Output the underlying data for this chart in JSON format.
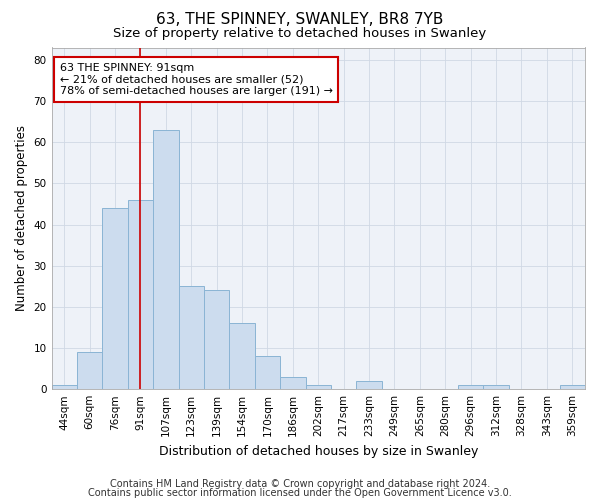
{
  "title1": "63, THE SPINNEY, SWANLEY, BR8 7YB",
  "title2": "Size of property relative to detached houses in Swanley",
  "xlabel": "Distribution of detached houses by size in Swanley",
  "ylabel": "Number of detached properties",
  "categories": [
    "44sqm",
    "60sqm",
    "76sqm",
    "91sqm",
    "107sqm",
    "123sqm",
    "139sqm",
    "154sqm",
    "170sqm",
    "186sqm",
    "202sqm",
    "217sqm",
    "233sqm",
    "249sqm",
    "265sqm",
    "280sqm",
    "296sqm",
    "312sqm",
    "328sqm",
    "343sqm",
    "359sqm"
  ],
  "values": [
    1,
    9,
    44,
    46,
    63,
    25,
    24,
    16,
    8,
    3,
    1,
    0,
    2,
    0,
    0,
    0,
    1,
    1,
    0,
    0,
    1
  ],
  "bar_color": "#ccdcee",
  "bar_edge_color": "#8ab4d4",
  "redline_index": 3,
  "redline_color": "#cc0000",
  "annotation_line1": "63 THE SPINNEY: 91sqm",
  "annotation_line2": "← 21% of detached houses are smaller (52)",
  "annotation_line3": "78% of semi-detached houses are larger (191) →",
  "annotation_box_color": "#ffffff",
  "annotation_box_edge": "#cc0000",
  "ylim": [
    0,
    83
  ],
  "yticks": [
    0,
    10,
    20,
    30,
    40,
    50,
    60,
    70,
    80
  ],
  "footer1": "Contains HM Land Registry data © Crown copyright and database right 2024.",
  "footer2": "Contains public sector information licensed under the Open Government Licence v3.0.",
  "grid_color": "#d0d8e4",
  "bg_color": "#eef2f8",
  "title1_fontsize": 11,
  "title2_fontsize": 9.5,
  "xlabel_fontsize": 9,
  "ylabel_fontsize": 8.5,
  "tick_fontsize": 7.5,
  "annotation_fontsize": 8,
  "footer_fontsize": 7
}
